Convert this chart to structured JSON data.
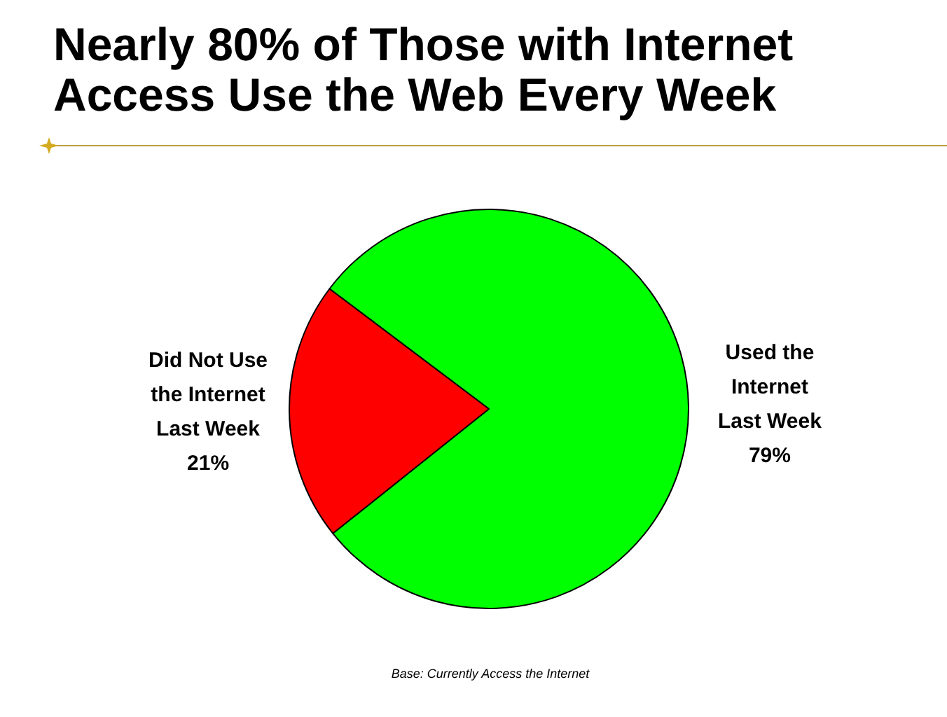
{
  "chart_data": {
    "type": "pie",
    "title": "Nearly 80% of Those with Internet Access Use the Web Every Week",
    "categories": [
      "Used the Internet Last Week",
      "Did Not Use the Internet Last Week"
    ],
    "values": [
      79,
      21
    ],
    "value_labels": [
      "79%",
      "21%"
    ],
    "colors": [
      "#00ff00",
      "#ff0000"
    ],
    "legend": false,
    "annotations": [
      "Base: Currently Access the Internet"
    ]
  }
}
